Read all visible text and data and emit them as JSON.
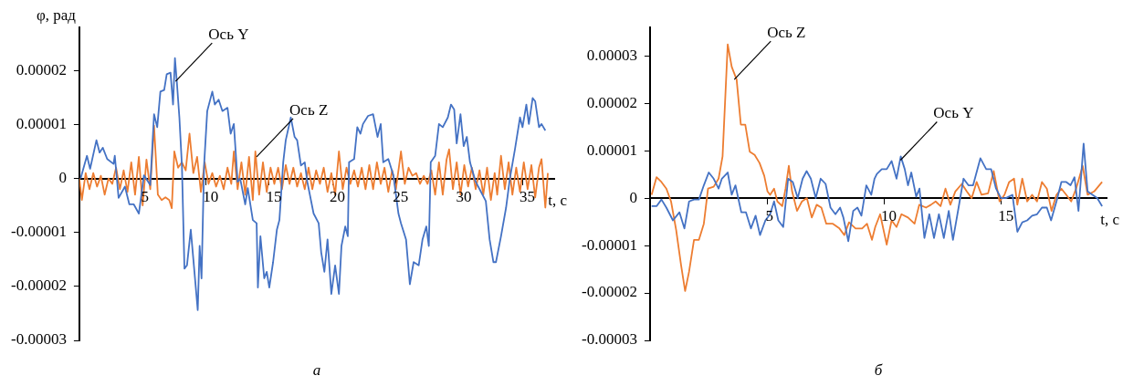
{
  "chart_data": [
    {
      "type": "line",
      "xlabel": "t, с",
      "ylabel": "φ, рад",
      "xlim": [
        0,
        37.5
      ],
      "xticks": [
        5,
        10,
        15,
        20,
        25,
        30,
        35
      ],
      "ylim": [
        -3e-05,
        2.8e-05
      ],
      "yticks": [
        {
          "value": -3e-05,
          "label": "-0.00003"
        },
        {
          "value": -2e-05,
          "label": "-0.00002"
        },
        {
          "value": -1e-05,
          "label": "-0.00001"
        },
        0,
        {
          "value": 1e-05,
          "label": "0.00001"
        },
        {
          "value": 2e-05,
          "label": "0.00002"
        }
      ],
      "grid": false,
      "marker": "none",
      "line_style": "solid",
      "series": [
        {
          "color": "#4472c4",
          "x": [
            0.1,
            0.6,
            0.85,
            1.35,
            1.6,
            1.85,
            2.2,
            2.7,
            2.8,
            3.1,
            3.6,
            3.95,
            4.3,
            4.7,
            5.1,
            5.6,
            5.9,
            6.15,
            6.4,
            6.7,
            6.9,
            7.2,
            7.4,
            7.55,
            7.7,
            7.9,
            8.1,
            8.3,
            8.5,
            8.8,
            9.0,
            9.35,
            9.5,
            9.65,
            9.85,
            10.1,
            10.5,
            10.7,
            11.0,
            11.3,
            11.7,
            11.95,
            12.2,
            12.5,
            12.7,
            13.1,
            13.3,
            13.7,
            14.0,
            14.1,
            14.3,
            14.6,
            14.8,
            15.0,
            15.3,
            15.6,
            15.8,
            16.1,
            16.3,
            16.7,
            17.0,
            17.2,
            17.5,
            17.8,
            18.0,
            18.5,
            18.9,
            19.1,
            19.35,
            19.6,
            19.9,
            20.2,
            20.5,
            20.7,
            21.0,
            21.2,
            21.3,
            21.7,
            21.95,
            22.2,
            22.4,
            22.8,
            23.2,
            23.55,
            23.8,
            24.0,
            24.4,
            24.8,
            25.2,
            25.4,
            25.8,
            26.1,
            26.4,
            26.8,
            27.1,
            27.4,
            27.6,
            27.75,
            28.1,
            28.4,
            28.7,
            29.1,
            29.35,
            29.6,
            29.8,
            30.1,
            30.35,
            30.6,
            30.85,
            31.3,
            31.7,
            32.1,
            32.4,
            32.7,
            32.9,
            33.3,
            33.7,
            34.0,
            34.4,
            34.8,
            35.0,
            35.3,
            35.5,
            35.8,
            36.0,
            36.3,
            36.5,
            36.8
          ],
          "values": [
            0,
            4.2e-06,
            1.8e-06,
            7.1e-06,
            4.8e-06,
            5.7e-06,
            3.6e-06,
            2.7e-06,
            4.2e-06,
            -3.6e-06,
            -1.5e-06,
            -4.8e-06,
            -4.8e-06,
            -6.5e-06,
            6e-07,
            -1.2e-06,
            1.19e-05,
            9.5e-06,
            1.61e-05,
            1.64e-05,
            1.93e-05,
            1.96e-05,
            1.37e-05,
            2.23e-05,
            1.79e-05,
            1.13e-05,
            2.4e-06,
            -1.67e-05,
            -1.61e-05,
            -9.5e-06,
            -1.49e-05,
            -2.44e-05,
            -1.25e-05,
            -1.85e-05,
            2.4e-06,
            1.25e-05,
            1.61e-05,
            1.37e-05,
            1.46e-05,
            1.25e-05,
            1.31e-05,
            8.3e-06,
            1.01e-05,
            -6e-07,
            0,
            -4.8e-06,
            -1.8e-06,
            -7.7e-06,
            -8.3e-06,
            -2.02e-05,
            -1.07e-05,
            -1.85e-05,
            -1.73e-05,
            -2.02e-05,
            -1.55e-05,
            -9.5e-06,
            -7.7e-06,
            3e-06,
            7.1e-06,
            1.13e-05,
            7.7e-06,
            7.1e-06,
            2.4e-06,
            3e-06,
            -6e-07,
            -6.5e-06,
            -8.3e-06,
            -1.37e-05,
            -1.73e-05,
            -1.13e-05,
            -2.14e-05,
            -1.61e-05,
            -2.14e-05,
            -1.25e-05,
            -8.9e-06,
            -1.07e-05,
            3e-06,
            3.6e-06,
            9.5e-06,
            8.3e-06,
            1.01e-05,
            1.16e-05,
            1.19e-05,
            7.7e-06,
            1.01e-05,
            3e-06,
            3.6e-06,
            6e-07,
            -6.5e-06,
            -8.3e-06,
            -1.13e-05,
            -1.96e-05,
            -1.55e-05,
            -1.61e-05,
            -1.13e-05,
            -8.9e-06,
            -1.25e-05,
            3e-06,
            4.2e-06,
            1.01e-05,
            9.5e-06,
            1.13e-05,
            1.37e-05,
            1.28e-05,
            6.5e-06,
            1.19e-05,
            6e-06,
            7.7e-06,
            3e-06,
            -6e-07,
            -2.4e-06,
            -4.2e-06,
            -1.13e-05,
            -1.55e-05,
            -1.55e-05,
            -1.07e-05,
            -5.4e-06,
            0,
            5.4e-06,
            1.13e-05,
            9.5e-06,
            1.37e-05,
            1.01e-05,
            1.49e-05,
            1.43e-05,
            9.5e-06,
            1.01e-05,
            8.9e-06
          ]
        },
        {
          "color": "#ed7d31",
          "x": [
            0,
            0.2,
            0.5,
            0.8,
            1.1,
            1.4,
            1.7,
            2.0,
            2.3,
            2.6,
            2.9,
            3.2,
            3.5,
            3.8,
            4.1,
            4.4,
            4.7,
            5.0,
            5.3,
            5.6,
            5.9,
            6.2,
            6.5,
            6.8,
            7.1,
            7.3,
            7.5,
            7.8,
            8.1,
            8.4,
            8.7,
            9.0,
            9.3,
            9.6,
            9.9,
            10.2,
            10.5,
            10.8,
            11.1,
            11.4,
            11.7,
            12.0,
            12.2,
            12.5,
            12.8,
            13.1,
            13.4,
            13.7,
            13.9,
            14.2,
            14.5,
            14.8,
            15.1,
            15.4,
            15.7,
            16.0,
            16.3,
            16.6,
            16.9,
            17.2,
            17.5,
            17.8,
            18.1,
            18.4,
            18.7,
            19.0,
            19.3,
            19.6,
            19.9,
            20.2,
            20.5,
            20.8,
            21.1,
            21.4,
            21.7,
            22.0,
            22.3,
            22.6,
            22.9,
            23.2,
            23.5,
            23.8,
            24.1,
            24.4,
            24.7,
            25.0,
            25.4,
            25.7,
            26.0,
            26.3,
            26.6,
            26.9,
            27.2,
            27.5,
            27.8,
            28.1,
            28.4,
            28.7,
            29.0,
            29.2,
            29.5,
            29.8,
            30.1,
            30.4,
            30.7,
            31.0,
            31.3,
            31.6,
            31.9,
            32.2,
            32.5,
            32.8,
            33.0,
            33.3,
            33.6,
            33.9,
            34.2,
            34.5,
            34.8,
            35.1,
            35.4,
            35.7,
            36.0,
            36.3,
            36.5,
            36.8,
            37.0
          ],
          "values": [
            0,
            -4e-06,
            1e-06,
            -2e-06,
            1e-06,
            -1.5e-06,
            5e-07,
            -3e-06,
            0,
            -1e-06,
            2e-06,
            -2e-06,
            1.5e-06,
            -2.5e-06,
            3e-06,
            -3e-06,
            4e-06,
            -5e-06,
            3.5e-06,
            -2e-06,
            9.8e-06,
            -3e-06,
            -4e-06,
            -3.5e-06,
            -4e-06,
            -5.5e-06,
            5e-06,
            2e-06,
            3e-06,
            1.5e-06,
            8.3e-06,
            1e-06,
            4e-06,
            -2.5e-06,
            3e-06,
            -1e-06,
            1e-06,
            -1.5e-06,
            5e-07,
            -2e-06,
            2e-06,
            -1e-06,
            5e-06,
            -2e-06,
            3e-06,
            -3e-06,
            4e-06,
            -4e-06,
            5e-06,
            -3e-06,
            3e-06,
            -2.5e-06,
            2e-06,
            -1e-06,
            2e-06,
            -2e-06,
            2.5e-06,
            -1e-06,
            2e-06,
            -1.5e-06,
            1e-06,
            -2e-06,
            2e-06,
            -2e-06,
            1.5e-06,
            -1e-06,
            2e-06,
            -2.5e-06,
            1e-06,
            -3e-06,
            5e-06,
            -2e-06,
            2e-06,
            -1e-06,
            1.5e-06,
            -1.5e-06,
            2e-06,
            -2e-06,
            2.5e-06,
            -2e-06,
            3e-06,
            -1e-06,
            2e-06,
            -2.5e-06,
            1.5e-06,
            -2e-06,
            5e-06,
            -1e-06,
            2e-06,
            5e-07,
            1e-06,
            -1e-06,
            5e-07,
            -1e-06,
            1.5e-06,
            -3e-06,
            3e-06,
            -3e-06,
            3.5e-06,
            5.4e-06,
            -2e-06,
            3e-06,
            -3e-06,
            2.5e-06,
            -1.5e-06,
            2e-06,
            -2e-06,
            1.5e-06,
            -3e-06,
            2e-06,
            -4e-06,
            1e-06,
            -3e-06,
            4.2e-06,
            -2e-06,
            3e-06,
            -3e-06,
            2e-06,
            -2.5e-06,
            3e-06,
            -2e-06,
            2.5e-06,
            -3.5e-06,
            2e-06,
            3.6e-06,
            -5.4e-06,
            1e-06
          ]
        }
      ],
      "annotations": [
        {
          "text": "Ось Y",
          "x": 7.6,
          "y": 1.8e-05
        },
        {
          "text": "Ось Z",
          "x": 14,
          "y": 4e-06
        },
        "а"
      ]
    },
    {
      "type": "line",
      "xlabel": "t, с",
      "xlim": [
        0,
        19.5
      ],
      "xticks": [
        5,
        10,
        15
      ],
      "ylim": [
        -3e-05,
        3.6e-05
      ],
      "yticks": [
        {
          "value": -3e-05,
          "label": "-0.00003"
        },
        {
          "value": -2e-05,
          "label": "-0.00002"
        },
        {
          "value": -1e-05,
          "label": "-0.00001"
        },
        0,
        {
          "value": 1e-05,
          "label": "0.00001"
        },
        {
          "value": 2e-05,
          "label": "0.00002"
        },
        {
          "value": 3e-05,
          "label": "0.00003"
        }
      ],
      "grid": false,
      "marker": "none",
      "line_style": "solid",
      "series": [
        {
          "color": "#4472c4",
          "x": [
            0.07,
            0.28,
            0.49,
            0.7,
            0.98,
            1.26,
            1.47,
            1.67,
            1.88,
            2.09,
            2.3,
            2.51,
            2.72,
            2.93,
            3.07,
            3.32,
            3.49,
            3.65,
            3.9,
            4.1,
            4.31,
            4.51,
            4.7,
            4.93,
            5.13,
            5.3,
            5.48,
            5.69,
            5.9,
            6.1,
            6.31,
            6.52,
            6.69,
            6.87,
            7.08,
            7.29,
            7.5,
            7.71,
            7.92,
            8.12,
            8.26,
            8.47,
            8.68,
            8.86,
            9.03,
            9.24,
            9.45,
            9.59,
            9.69,
            9.9,
            10.11,
            10.32,
            10.53,
            10.71,
            10.88,
            11.02,
            11.16,
            11.37,
            11.51,
            11.72,
            11.93,
            12.13,
            12.34,
            12.55,
            12.76,
            12.94,
            13.18,
            13.39,
            13.6,
            13.8,
            14.11,
            14.36,
            14.57,
            14.78,
            14.99,
            15.2,
            15.48,
            15.69,
            15.9,
            16.11,
            16.32,
            16.53,
            16.74,
            16.95,
            17.13,
            17.36,
            17.57,
            17.78,
            17.96,
            18.13,
            18.3,
            18.52,
            18.69,
            18.9,
            19.1,
            19.31
          ],
          "values": [
            -1.7e-06,
            -1.7e-06,
            -3e-07,
            -2e-06,
            -4.7e-06,
            -3e-06,
            -6.4e-06,
            -7e-07,
            -3e-07,
            -3e-07,
            2.7e-06,
            5.4e-06,
            4.1e-06,
            2e-06,
            4.1e-06,
            5.4e-06,
            7e-07,
            2.7e-06,
            -3e-06,
            -3e-06,
            -6.4e-06,
            -3.7e-06,
            -7.8e-06,
            -4.7e-06,
            -3.4e-06,
            -7e-07,
            -4.7e-06,
            -6.1e-06,
            4.1e-06,
            3.4e-06,
            0,
            4.1e-06,
            5.7e-06,
            4.1e-06,
            0,
            4.1e-06,
            3e-06,
            -2e-06,
            -3.4e-06,
            -2e-06,
            -4.1e-06,
            -9.1e-06,
            -2.7e-06,
            -2e-06,
            -3.7e-06,
            2.7e-06,
            7e-07,
            4.1e-06,
            5.1e-06,
            6.1e-06,
            6.1e-06,
            7.8e-06,
            4.1e-06,
            8.8e-06,
            6.1e-06,
            2.7e-06,
            5.4e-06,
            3e-07,
            2e-06,
            -8.4e-06,
            -3.4e-06,
            -8.4e-06,
            -3.4e-06,
            -8.4e-06,
            -2.7e-06,
            -8.8e-06,
            -2e-06,
            4.1e-06,
            2.7e-06,
            2.7e-06,
            8.4e-06,
            6.1e-06,
            6.1e-06,
            2e-06,
            0,
            0,
            7e-07,
            -7.1e-06,
            -5.1e-06,
            -4.7e-06,
            -3.7e-06,
            -3.4e-06,
            -2e-06,
            -2e-06,
            -4.7e-06,
            -7e-07,
            3.4e-06,
            3.4e-06,
            2.7e-06,
            4.4e-06,
            -2.7e-06,
            1.15e-05,
            1.4e-06,
            7e-07,
            0,
            -1.7e-06
          ]
        },
        {
          "color": "#ed7d31",
          "x": [
            0.07,
            0.28,
            0.49,
            0.7,
            0.9,
            1.12,
            1.33,
            1.5,
            1.67,
            1.88,
            2.09,
            2.3,
            2.48,
            2.72,
            2.93,
            3.1,
            3.32,
            3.49,
            3.7,
            3.88,
            4.07,
            4.26,
            4.47,
            4.68,
            4.88,
            5.02,
            5.13,
            5.3,
            5.44,
            5.65,
            5.79,
            5.93,
            6.07,
            6.28,
            6.49,
            6.7,
            6.91,
            7.12,
            7.32,
            7.53,
            7.81,
            8.09,
            8.3,
            8.5,
            8.78,
            9.06,
            9.27,
            9.48,
            9.62,
            9.83,
            10.11,
            10.32,
            10.53,
            10.74,
            11.02,
            11.3,
            11.5,
            11.79,
            12.0,
            12.2,
            12.41,
            12.62,
            12.83,
            13.04,
            13.32,
            13.53,
            13.74,
            13.95,
            14.16,
            14.44,
            14.68,
            14.93,
            15.14,
            15.34,
            15.55,
            15.69,
            15.9,
            16.11,
            16.32,
            16.53,
            16.74,
            16.95,
            17.15,
            17.36,
            17.57,
            17.78,
            17.99,
            18.2,
            18.48,
            18.69,
            18.97,
            19.31
          ],
          "values": [
            7e-07,
            4.4e-06,
            3.4e-06,
            2e-06,
            -7e-07,
            -6.8e-06,
            -1.42e-05,
            -1.96e-05,
            -1.55e-05,
            -8.8e-06,
            -8.8e-06,
            -5.4e-06,
            2e-06,
            2.4e-06,
            4.1e-06,
            8.8e-06,
            3.24e-05,
            2.77e-05,
            2.5e-05,
            1.55e-05,
            1.55e-05,
            9.8e-06,
            9.1e-06,
            7.4e-06,
            4.7e-06,
            1.4e-06,
            7e-07,
            2e-06,
            -7e-07,
            -1.7e-06,
            2e-06,
            6.8e-06,
            1.4e-06,
            -2.7e-06,
            -7e-07,
            0,
            -4.1e-06,
            -1.4e-06,
            -2e-06,
            -5.4e-06,
            -5.4e-06,
            -6.4e-06,
            -7.8e-06,
            -5.1e-06,
            -6.4e-06,
            -6.4e-06,
            -5.4e-06,
            -8.8e-06,
            -6.1e-06,
            -3.4e-06,
            -9.8e-06,
            -4.7e-06,
            -6.1e-06,
            -3.4e-06,
            -4.1e-06,
            -5.4e-06,
            -1.4e-06,
            -2e-06,
            -1.4e-06,
            -7e-07,
            -1.7e-06,
            2e-06,
            -1.4e-06,
            1.4e-06,
            3e-06,
            1.4e-06,
            0,
            3.4e-06,
            7e-07,
            1e-06,
            5.7e-06,
            -7e-07,
            7e-07,
            3.4e-06,
            4.1e-06,
            -1.4e-06,
            4.1e-06,
            -7e-07,
            7e-07,
            -7e-07,
            3.4e-06,
            2e-06,
            -2.7e-06,
            7e-07,
            2e-06,
            7e-07,
            -7e-07,
            2e-06,
            6.8e-06,
            7e-07,
            1.4e-06,
            3.4e-06
          ]
        }
      ],
      "annotations": [
        {
          "text": "Ось Z",
          "x": 3.6,
          "y": 2.5e-05
        },
        {
          "text": "Ось Y",
          "x": 10.7,
          "y": 8e-06
        },
        "б"
      ]
    }
  ]
}
